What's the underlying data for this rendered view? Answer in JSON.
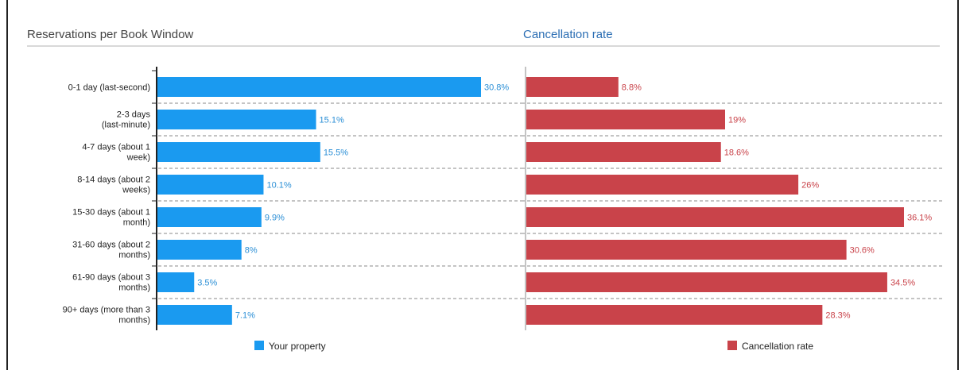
{
  "header": {
    "left_title": "Reservations per Book Window",
    "right_title": "Cancellation rate"
  },
  "colors": {
    "your_property": "#1a9af0",
    "cancellation": "#c9434a",
    "value_blue": "#2b8fd6",
    "value_red": "#c9434a"
  },
  "chart_data": [
    {
      "type": "bar",
      "orientation": "horizontal",
      "title": "Reservations per Book Window",
      "categories": [
        [
          "0-1 day (last-second)"
        ],
        [
          "2-3 days",
          "(last-minute)"
        ],
        [
          "4-7 days (about 1",
          "week)"
        ],
        [
          "8-14 days (about 2",
          "weeks)"
        ],
        [
          "15-30 days (about 1",
          "month)"
        ],
        [
          "31-60 days (about 2",
          "months)"
        ],
        [
          "61-90 days (about 3",
          "months)"
        ],
        [
          "90+ days (more than 3",
          "months)"
        ]
      ],
      "series": [
        {
          "name": "Your property",
          "values": [
            30.8,
            15.1,
            15.5,
            10.1,
            9.9,
            8,
            3.5,
            7.1
          ],
          "labels": [
            "30.8%",
            "15.1%",
            "15.5%",
            "10.1%",
            "9.9%",
            "8%",
            "3.5%",
            "7.1%"
          ]
        }
      ],
      "xlim": [
        0,
        30.8
      ],
      "grid": "dashed horizontal separators",
      "legend": "bottom"
    },
    {
      "type": "bar",
      "orientation": "horizontal",
      "title": "Cancellation rate",
      "categories": [
        [
          "0-1 day (last-second)"
        ],
        [
          "2-3 days",
          "(last-minute)"
        ],
        [
          "4-7 days (about 1",
          "week)"
        ],
        [
          "8-14 days (about 2",
          "weeks)"
        ],
        [
          "15-30 days (about 1",
          "month)"
        ],
        [
          "31-60 days (about 2",
          "months)"
        ],
        [
          "61-90 days (about 3",
          "months)"
        ],
        [
          "90+ days (more than 3",
          "months)"
        ]
      ],
      "series": [
        {
          "name": "Cancellation rate",
          "values": [
            8.8,
            19,
            18.6,
            26,
            36.1,
            30.6,
            34.5,
            28.3
          ],
          "labels": [
            "8.8%",
            "19%",
            "18.6%",
            "26%",
            "36.1%",
            "30.6%",
            "34.5%",
            "28.3%"
          ]
        }
      ],
      "xlim": [
        0,
        36.1
      ],
      "grid": "dashed horizontal separators",
      "legend": "bottom"
    }
  ]
}
